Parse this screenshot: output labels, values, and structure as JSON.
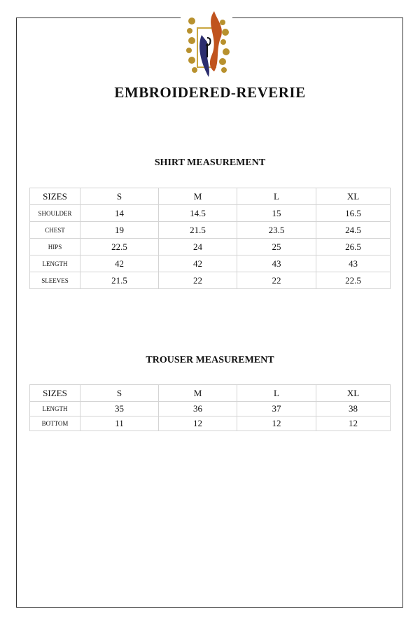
{
  "brand": "EMBROIDERED-REVERIE",
  "logo": {
    "name": "brand-logo-icon",
    "colors": {
      "gold": "#b8912e",
      "orange": "#c0531e",
      "navy": "#2b2d6e"
    }
  },
  "shirt": {
    "title": "SHIRT MEASUREMENT",
    "header": [
      "SIZES",
      "S",
      "M",
      "L",
      "XL"
    ],
    "rows": [
      {
        "label": "SHOULDER",
        "values": [
          "14",
          "14.5",
          "15",
          "16.5"
        ]
      },
      {
        "label": "CHEST",
        "values": [
          "19",
          "21.5",
          "23.5",
          "24.5"
        ]
      },
      {
        "label": "HIPS",
        "values": [
          "22.5",
          "24",
          "25",
          "26.5"
        ]
      },
      {
        "label": "LENGTH",
        "values": [
          "42",
          "42",
          "43",
          "43"
        ]
      },
      {
        "label": "SLEEVES",
        "values": [
          "21.5",
          "22",
          "22",
          "22.5"
        ]
      }
    ]
  },
  "trouser": {
    "title": "TROUSER MEASUREMENT",
    "header": [
      "SIZES",
      "S",
      "M",
      "L",
      "XL"
    ],
    "rows": [
      {
        "label": "LENGTH",
        "values": [
          "35",
          "36",
          "37",
          "38"
        ]
      },
      {
        "label": "BOTTOM",
        "values": [
          "11",
          "12",
          "12",
          "12"
        ]
      }
    ]
  }
}
